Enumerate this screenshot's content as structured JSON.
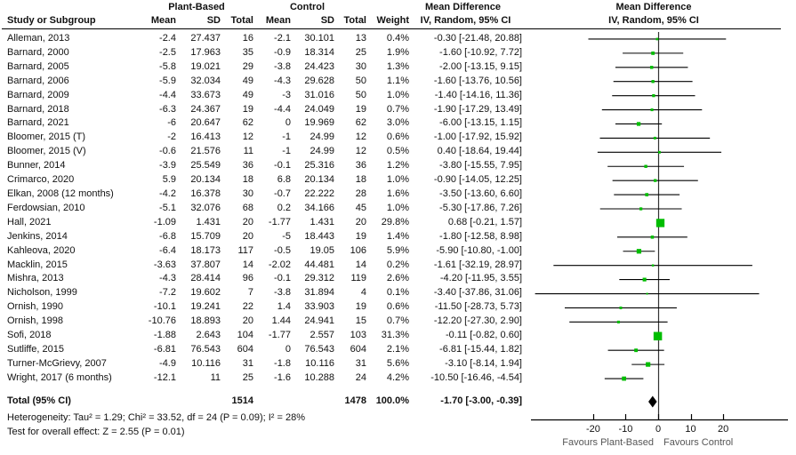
{
  "header": {
    "study_col": "Study or Subgroup",
    "group1": "Plant-Based",
    "group2": "Control",
    "mean": "Mean",
    "sd": "SD",
    "total": "Total",
    "weight": "Weight",
    "md_title": "Mean Difference",
    "md_subtitle": "IV, Random, 95% CI",
    "plot_title": "Mean Difference",
    "plot_subtitle": "IV, Random, 95% CI"
  },
  "chart_data": {
    "type": "forest",
    "xlabel_left": "Favours Plant-Based",
    "xlabel_right": "Favours Control",
    "axis": {
      "tick_values": [
        -20,
        -10,
        0,
        10,
        20
      ],
      "tick_labels": [
        "-20",
        "-10",
        "0",
        "10",
        "20"
      ],
      "xmin": -39,
      "xmax": 40
    },
    "studies": [
      {
        "name": "Alleman, 2013",
        "m1": "-2.4",
        "sd1": "27.437",
        "n1": "16",
        "m2": "-2.1",
        "sd2": "30.101",
        "n2": "13",
        "w": "0.4%",
        "wv": 0.4,
        "md": "-0.30 [-21.48, 20.88]",
        "est": -0.3,
        "lo": -21.48,
        "hi": 20.88
      },
      {
        "name": "Barnard, 2000",
        "m1": "-2.5",
        "sd1": "17.963",
        "n1": "35",
        "m2": "-0.9",
        "sd2": "18.314",
        "n2": "25",
        "w": "1.9%",
        "wv": 1.9,
        "md": "-1.60 [-10.92, 7.72]",
        "est": -1.6,
        "lo": -10.92,
        "hi": 7.72
      },
      {
        "name": "Barnard, 2005",
        "m1": "-5.8",
        "sd1": "19.021",
        "n1": "29",
        "m2": "-3.8",
        "sd2": "24.423",
        "n2": "30",
        "w": "1.3%",
        "wv": 1.3,
        "md": "-2.00 [-13.15, 9.15]",
        "est": -2.0,
        "lo": -13.15,
        "hi": 9.15
      },
      {
        "name": "Barnard, 2006",
        "m1": "-5.9",
        "sd1": "32.034",
        "n1": "49",
        "m2": "-4.3",
        "sd2": "29.628",
        "n2": "50",
        "w": "1.1%",
        "wv": 1.1,
        "md": "-1.60 [-13.76, 10.56]",
        "est": -1.6,
        "lo": -13.76,
        "hi": 10.56
      },
      {
        "name": "Barnard, 2009",
        "m1": "-4.4",
        "sd1": "33.673",
        "n1": "49",
        "m2": "-3",
        "sd2": "31.016",
        "n2": "50",
        "w": "1.0%",
        "wv": 1.0,
        "md": "-1.40 [-14.16, 11.36]",
        "est": -1.4,
        "lo": -14.16,
        "hi": 11.36
      },
      {
        "name": "Barnard, 2018",
        "m1": "-6.3",
        "sd1": "24.367",
        "n1": "19",
        "m2": "-4.4",
        "sd2": "24.049",
        "n2": "19",
        "w": "0.7%",
        "wv": 0.7,
        "md": "-1.90 [-17.29, 13.49]",
        "est": -1.9,
        "lo": -17.29,
        "hi": 13.49
      },
      {
        "name": "Barnard, 2021",
        "m1": "-6",
        "sd1": "20.647",
        "n1": "62",
        "m2": "0",
        "sd2": "19.969",
        "n2": "62",
        "w": "3.0%",
        "wv": 3.0,
        "md": "-6.00 [-13.15, 1.15]",
        "est": -6.0,
        "lo": -13.15,
        "hi": 1.15
      },
      {
        "name": "Bloomer, 2015 (T)",
        "m1": "-2",
        "sd1": "16.413",
        "n1": "12",
        "m2": "-1",
        "sd2": "24.99",
        "n2": "12",
        "w": "0.6%",
        "wv": 0.6,
        "md": "-1.00 [-17.92, 15.92]",
        "est": -1.0,
        "lo": -17.92,
        "hi": 15.92
      },
      {
        "name": "Bloomer, 2015 (V)",
        "m1": "-0.6",
        "sd1": "21.576",
        "n1": "11",
        "m2": "-1",
        "sd2": "24.99",
        "n2": "12",
        "w": "0.5%",
        "wv": 0.5,
        "md": "0.40 [-18.64, 19.44]",
        "est": 0.4,
        "lo": -18.64,
        "hi": 19.44
      },
      {
        "name": "Bunner, 2014",
        "m1": "-3.9",
        "sd1": "25.549",
        "n1": "36",
        "m2": "-0.1",
        "sd2": "25.316",
        "n2": "36",
        "w": "1.2%",
        "wv": 1.2,
        "md": "-3.80 [-15.55, 7.95]",
        "est": -3.8,
        "lo": -15.55,
        "hi": 7.95
      },
      {
        "name": "Crimarco, 2020",
        "m1": "5.9",
        "sd1": "20.134",
        "n1": "18",
        "m2": "6.8",
        "sd2": "20.134",
        "n2": "18",
        "w": "1.0%",
        "wv": 1.0,
        "md": "-0.90 [-14.05, 12.25]",
        "est": -0.9,
        "lo": -14.05,
        "hi": 12.25
      },
      {
        "name": "Elkan, 2008 (12 months)",
        "m1": "-4.2",
        "sd1": "16.378",
        "n1": "30",
        "m2": "-0.7",
        "sd2": "22.222",
        "n2": "28",
        "w": "1.6%",
        "wv": 1.6,
        "md": "-3.50 [-13.60, 6.60]",
        "est": -3.5,
        "lo": -13.6,
        "hi": 6.6
      },
      {
        "name": "Ferdowsian, 2010",
        "m1": "-5.1",
        "sd1": "32.076",
        "n1": "68",
        "m2": "0.2",
        "sd2": "34.166",
        "n2": "45",
        "w": "1.0%",
        "wv": 1.0,
        "md": "-5.30 [-17.86, 7.26]",
        "est": -5.3,
        "lo": -17.86,
        "hi": 7.26
      },
      {
        "name": "Hall, 2021",
        "m1": "-1.09",
        "sd1": "1.431",
        "n1": "20",
        "m2": "-1.77",
        "sd2": "1.431",
        "n2": "20",
        "w": "29.8%",
        "wv": 29.8,
        "md": "0.68 [-0.21, 1.57]",
        "est": 0.68,
        "lo": -0.21,
        "hi": 1.57
      },
      {
        "name": "Jenkins, 2014",
        "m1": "-6.8",
        "sd1": "15.709",
        "n1": "20",
        "m2": "-5",
        "sd2": "18.443",
        "n2": "19",
        "w": "1.4%",
        "wv": 1.4,
        "md": "-1.80 [-12.58, 8.98]",
        "est": -1.8,
        "lo": -12.58,
        "hi": 8.98
      },
      {
        "name": "Kahleova, 2020",
        "m1": "-6.4",
        "sd1": "18.173",
        "n1": "117",
        "m2": "-0.5",
        "sd2": "19.05",
        "n2": "106",
        "w": "5.9%",
        "wv": 5.9,
        "md": "-5.90 [-10.80, -1.00]",
        "est": -5.9,
        "lo": -10.8,
        "hi": -1.0
      },
      {
        "name": "Macklin, 2015",
        "m1": "-3.63",
        "sd1": "37.807",
        "n1": "14",
        "m2": "-2.02",
        "sd2": "44.481",
        "n2": "14",
        "w": "0.2%",
        "wv": 0.2,
        "md": "-1.61 [-32.19, 28.97]",
        "est": -1.61,
        "lo": -32.19,
        "hi": 28.97
      },
      {
        "name": "Mishra, 2013",
        "m1": "-4.3",
        "sd1": "28.414",
        "n1": "96",
        "m2": "-0.1",
        "sd2": "29.312",
        "n2": "119",
        "w": "2.6%",
        "wv": 2.6,
        "md": "-4.20 [-11.95, 3.55]",
        "est": -4.2,
        "lo": -11.95,
        "hi": 3.55
      },
      {
        "name": "Nicholson, 1999",
        "m1": "-7.2",
        "sd1": "19.602",
        "n1": "7",
        "m2": "-3.8",
        "sd2": "31.894",
        "n2": "4",
        "w": "0.1%",
        "wv": 0.1,
        "md": "-3.40 [-37.86, 31.06]",
        "est": -3.4,
        "lo": -37.86,
        "hi": 31.06
      },
      {
        "name": "Ornish, 1990",
        "m1": "-10.1",
        "sd1": "19.241",
        "n1": "22",
        "m2": "1.4",
        "sd2": "33.903",
        "n2": "19",
        "w": "0.6%",
        "wv": 0.6,
        "md": "-11.50 [-28.73, 5.73]",
        "est": -11.5,
        "lo": -28.73,
        "hi": 5.73
      },
      {
        "name": "Ornish, 1998",
        "m1": "-10.76",
        "sd1": "18.893",
        "n1": "20",
        "m2": "1.44",
        "sd2": "24.941",
        "n2": "15",
        "w": "0.7%",
        "wv": 0.7,
        "md": "-12.20 [-27.30, 2.90]",
        "est": -12.2,
        "lo": -27.3,
        "hi": 2.9
      },
      {
        "name": "Sofi, 2018",
        "m1": "-1.88",
        "sd1": "2.643",
        "n1": "104",
        "m2": "-1.77",
        "sd2": "2.557",
        "n2": "103",
        "w": "31.3%",
        "wv": 31.3,
        "md": "-0.11 [-0.82, 0.60]",
        "est": -0.11,
        "lo": -0.82,
        "hi": 0.6
      },
      {
        "name": "Sutliffe, 2015",
        "m1": "-6.81",
        "sd1": "76.543",
        "n1": "604",
        "m2": "0",
        "sd2": "76.543",
        "n2": "604",
        "w": "2.1%",
        "wv": 2.1,
        "md": "-6.81 [-15.44, 1.82]",
        "est": -6.81,
        "lo": -15.44,
        "hi": 1.82
      },
      {
        "name": "Turner-McGrievy, 2007",
        "m1": "-4.9",
        "sd1": "10.116",
        "n1": "31",
        "m2": "-1.8",
        "sd2": "10.116",
        "n2": "31",
        "w": "5.6%",
        "wv": 5.6,
        "md": "-3.10 [-8.14, 1.94]",
        "est": -3.1,
        "lo": -8.14,
        "hi": 1.94
      },
      {
        "name": "Wright, 2017 (6 months)",
        "m1": "-12.1",
        "sd1": "11",
        "n1": "25",
        "m2": "-1.6",
        "sd2": "10.288",
        "n2": "24",
        "w": "4.2%",
        "wv": 4.2,
        "md": "-10.50 [-16.46, -4.54]",
        "est": -10.5,
        "lo": -16.46,
        "hi": -4.54
      }
    ],
    "total": {
      "label": "Total (95% CI)",
      "n1": "1514",
      "n2": "1478",
      "w": "100.0%",
      "md": "-1.70 [-3.00, -0.39]",
      "est": -1.7,
      "lo": -3.0,
      "hi": -0.39
    },
    "footnotes": {
      "heterogeneity": "Heterogeneity: Tau² = 1.29; Chi² = 33.52, df = 24 (P = 0.09); I² = 28%",
      "overall_effect": "Test for overall effect: Z = 2.55 (P = 0.01)"
    }
  },
  "colors": {
    "square_green": "#00bd00",
    "diamond_black": "#000000",
    "line_black": "#000000",
    "zero_line": "#333333",
    "favours_text": "#555555"
  }
}
